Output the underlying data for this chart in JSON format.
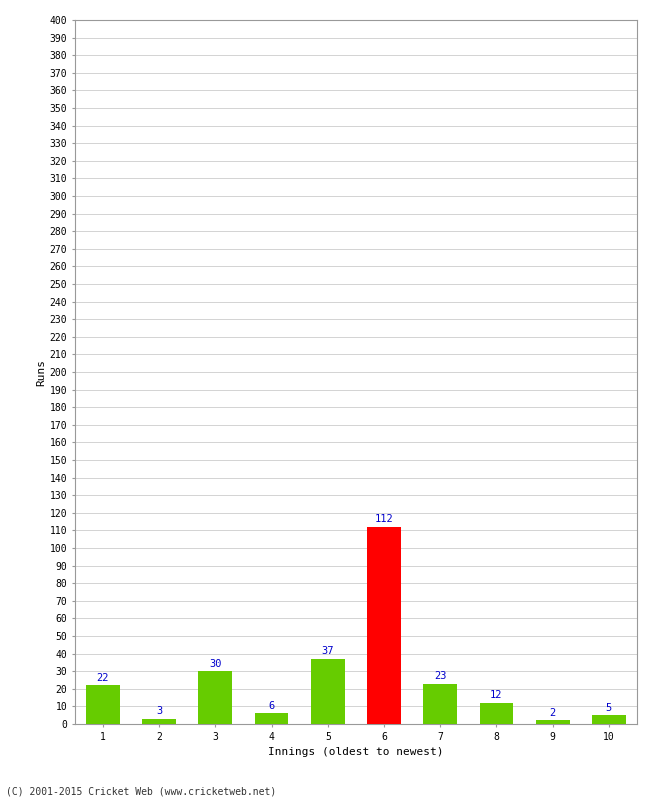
{
  "xlabel": "Innings (oldest to newest)",
  "ylabel": "Runs",
  "categories": [
    "1",
    "2",
    "3",
    "4",
    "5",
    "6",
    "7",
    "8",
    "9",
    "10"
  ],
  "values": [
    22,
    3,
    30,
    6,
    37,
    112,
    23,
    12,
    2,
    5
  ],
  "bar_colors": [
    "#66cc00",
    "#66cc00",
    "#66cc00",
    "#66cc00",
    "#66cc00",
    "#ff0000",
    "#66cc00",
    "#66cc00",
    "#66cc00",
    "#66cc00"
  ],
  "label_color": "#0000cc",
  "ylim": [
    0,
    400
  ],
  "ytick_step": 10,
  "background_color": "#ffffff",
  "grid_color": "#cccccc",
  "footer": "(C) 2001-2015 Cricket Web (www.cricketweb.net)"
}
